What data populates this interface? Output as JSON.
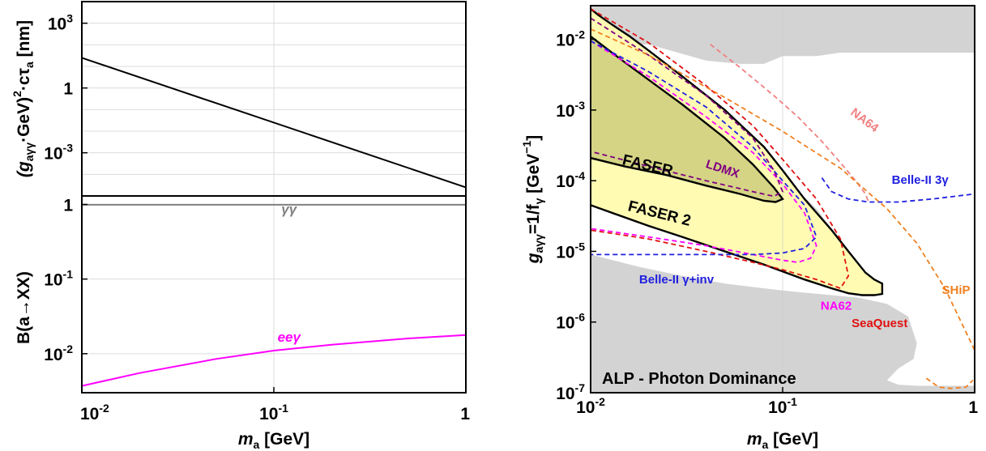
{
  "chart_data": [
    {
      "type": "line",
      "panel": "left-top",
      "ylabel_parts": [
        "(g",
        "aγγ",
        "·GeV)",
        "2",
        "·cτ",
        "a",
        " [nm]"
      ],
      "xscale": "log",
      "yscale": "log",
      "xlim": [
        0.01,
        1
      ],
      "ylim": [
        1e-05,
        10000
      ],
      "yticks": [
        {
          "v": 0.001,
          "b": "10",
          "e": "-3"
        },
        {
          "v": 1,
          "b": "1",
          "e": ""
        },
        {
          "v": 1000,
          "b": "10",
          "e": "3"
        }
      ],
      "series": [
        {
          "name": "",
          "color": "#000000",
          "x": [
            0.01,
            1
          ],
          "y": [
            25,
            2.5e-05
          ]
        }
      ]
    },
    {
      "type": "line",
      "panel": "left-bottom",
      "ylabel": "B(a→XX)",
      "xlabel_parts": [
        "m",
        "a",
        " [GeV]"
      ],
      "xscale": "log",
      "yscale": "log",
      "xlim": [
        0.01,
        1
      ],
      "ylim": [
        0.003,
        1.3
      ],
      "xticks": [
        {
          "v": 0.01,
          "b": "10",
          "e": "-2"
        },
        {
          "v": 0.1,
          "b": "10",
          "e": "-1"
        },
        {
          "v": 1,
          "b": "1",
          "e": ""
        }
      ],
      "yticks": [
        {
          "v": 0.01,
          "b": "10",
          "e": "-2"
        },
        {
          "v": 0.1,
          "b": "10",
          "e": "-1"
        },
        {
          "v": 1,
          "b": "1",
          "e": ""
        }
      ],
      "series": [
        {
          "name": "γγ",
          "color": "#808080",
          "x": [
            0.01,
            1
          ],
          "y": [
            0.99,
            0.99
          ]
        },
        {
          "name": "eeγ",
          "color": "#ff00ff",
          "x": [
            0.01,
            0.02,
            0.05,
            0.1,
            0.2,
            0.5,
            1
          ],
          "y": [
            0.0037,
            0.0055,
            0.0085,
            0.011,
            0.0132,
            0.016,
            0.0178
          ]
        }
      ],
      "labels": [
        {
          "text": "γγ",
          "color": "#808080",
          "x": 0.12,
          "y": 0.75
        },
        {
          "text": "eeγ",
          "color": "#ff00ff",
          "x": 0.12,
          "y": 0.0145
        }
      ]
    },
    {
      "type": "area",
      "panel": "right",
      "xlabel_parts": [
        "m",
        "a",
        " [GeV]"
      ],
      "ylabel_parts": [
        "g",
        "aγγ",
        "=1/f",
        "γ",
        "  [GeV",
        "−1",
        "]"
      ],
      "xscale": "log",
      "yscale": "log",
      "xlim": [
        0.01,
        1
      ],
      "ylim": [
        1e-07,
        0.03
      ],
      "xticks": [
        {
          "v": 0.01,
          "b": "10",
          "e": "-2"
        },
        {
          "v": 0.1,
          "b": "10",
          "e": "-1"
        },
        {
          "v": 1,
          "b": "1",
          "e": ""
        }
      ],
      "yticks": [
        {
          "v": 1e-07,
          "b": "10",
          "e": "-7"
        },
        {
          "v": 1e-06,
          "b": "10",
          "e": "-6"
        },
        {
          "v": 1e-05,
          "b": "10",
          "e": "-5"
        },
        {
          "v": 0.0001,
          "b": "10",
          "e": "-4"
        },
        {
          "v": 0.001,
          "b": "10",
          "e": "-3"
        },
        {
          "v": 0.01,
          "b": "10",
          "e": "-2"
        }
      ],
      "title_box": "ALP - Photon Dominance",
      "regions": [
        {
          "name": "excluded-top",
          "color": "#d3d3d3",
          "x": [
            0.01,
            0.01,
            0.02,
            0.04,
            0.06,
            0.08,
            0.1,
            0.15,
            0.2,
            0.3,
            0.5,
            0.7,
            1.0,
            1.0,
            0.01
          ],
          "y": [
            0.03,
            0.008,
            0.0085,
            0.005,
            0.0045,
            0.0045,
            0.0058,
            0.0058,
            0.0065,
            0.0065,
            0.0065,
            0.0065,
            0.0065,
            0.03,
            0.03
          ]
        },
        {
          "name": "excluded-bottom",
          "color": "#d3d3d3",
          "x": [
            0.01,
            0.01,
            0.018,
            0.03,
            0.05,
            0.08,
            0.1,
            0.13,
            0.18,
            0.25,
            0.35,
            0.45,
            0.5,
            0.48,
            0.4,
            0.35,
            0.4,
            0.5,
            0.7,
            1.0,
            1.0,
            0.01
          ],
          "y": [
            1e-07,
            9e-06,
            6e-06,
            4.5e-06,
            3.5e-06,
            3e-06,
            2.8e-06,
            2.6e-06,
            2.4e-06,
            2.2e-06,
            1.8e-06,
            1.2e-06,
            5e-07,
            3e-07,
            2.2e-07,
            1.5e-07,
            1.3e-07,
            1.25e-07,
            1.25e-07,
            1.25e-07,
            1e-07,
            1e-07
          ]
        },
        {
          "name": "excluded-wedge",
          "color": "#d3d3d3",
          "x": [
            0.019,
            0.035,
            0.06,
            0.1,
            0.15,
            0.21,
            0.2,
            0.13,
            0.08
          ],
          "y": [
            0.0007,
            0.00075,
            0.00035,
            0.00012,
            4e-05,
            1.2e-05,
            5e-06,
            2.5e-05,
            8e-05
          ]
        },
        {
          "name": "FASER 2",
          "color": "#fffbb3",
          "x": [
            0.01,
            0.011,
            0.013,
            0.016,
            0.02,
            0.03,
            0.05,
            0.08,
            0.1,
            0.13,
            0.18,
            0.22,
            0.27,
            0.3,
            0.33,
            0.33,
            0.3,
            0.26,
            0.22,
            0.18,
            0.13,
            0.1,
            0.08,
            0.05,
            0.03,
            0.02,
            0.01
          ],
          "y": [
            0.027,
            0.022,
            0.016,
            0.011,
            0.007,
            0.003,
            0.001,
            0.0003,
            0.00014,
            5.5e-05,
            2e-05,
            1e-05,
            5e-06,
            4e-06,
            3.5e-06,
            2.5e-06,
            2.4e-06,
            2.4e-06,
            2.55e-06,
            3e-06,
            4e-06,
            5.2e-06,
            6.5e-06,
            1e-05,
            1.6e-05,
            2.3e-05,
            4.5e-05
          ]
        },
        {
          "name": "FASER",
          "color": "#cfcf7e",
          "x": [
            0.01,
            0.014,
            0.02,
            0.03,
            0.05,
            0.07,
            0.09,
            0.1,
            0.092,
            0.08,
            0.06,
            0.04,
            0.025,
            0.015,
            0.01
          ],
          "y": [
            0.011,
            0.0055,
            0.0027,
            0.0012,
            0.0004,
            0.00017,
            8e-05,
            5.5e-05,
            5e-05,
            5.2e-05,
            6.5e-05,
            8.5e-05,
            0.00012,
            0.00016,
            0.00021
          ]
        }
      ],
      "series": [
        {
          "name": "FASER",
          "color": "#000000",
          "style": "solid",
          "x": [
            0.01,
            0.014,
            0.02,
            0.03,
            0.05,
            0.07,
            0.09,
            0.1,
            0.092,
            0.08,
            0.06,
            0.04,
            0.025,
            0.015,
            0.01
          ],
          "y": [
            0.011,
            0.0055,
            0.0027,
            0.0012,
            0.0004,
            0.00017,
            8e-05,
            5.5e-05,
            5e-05,
            5.2e-05,
            6.5e-05,
            8.5e-05,
            0.00012,
            0.00016,
            0.00021
          ]
        },
        {
          "name": "FASER 2",
          "color": "#000000",
          "style": "solid",
          "x": [
            0.01,
            0.011,
            0.013,
            0.016,
            0.02,
            0.03,
            0.05,
            0.08,
            0.1,
            0.13,
            0.18,
            0.22,
            0.27,
            0.3,
            0.33,
            0.33,
            0.3,
            0.26,
            0.22,
            0.18,
            0.13,
            0.1,
            0.08,
            0.05,
            0.03,
            0.02,
            0.01
          ],
          "y": [
            0.027,
            0.022,
            0.016,
            0.011,
            0.007,
            0.003,
            0.001,
            0.0003,
            0.00014,
            5.5e-05,
            2e-05,
            1e-05,
            5e-06,
            4e-06,
            3.5e-06,
            2.5e-06,
            2.4e-06,
            2.4e-06,
            2.55e-06,
            3e-06,
            4e-06,
            5.2e-06,
            6.5e-06,
            1e-05,
            1.6e-05,
            2.3e-05,
            4.5e-05
          ]
        },
        {
          "name": "SeaQuest",
          "color": "#e01010",
          "style": "dashed",
          "x": [
            0.01,
            0.02,
            0.04,
            0.07,
            0.1,
            0.15,
            0.2,
            0.22,
            0.2,
            0.15,
            0.1,
            0.07,
            0.04,
            0.02,
            0.01
          ],
          "y": [
            0.027,
            0.009,
            0.0022,
            0.0006,
            0.0002,
            5.5e-05,
            1.5e-05,
            4.5e-06,
            3e-06,
            4e-06,
            5.5e-06,
            7e-06,
            1e-05,
            1.5e-05,
            2e-05
          ]
        },
        {
          "name": "NA62",
          "color": "#ff00ff",
          "style": "dashed",
          "x": [
            0.01,
            0.02,
            0.04,
            0.07,
            0.1,
            0.13,
            0.15,
            0.14,
            0.12,
            0.1,
            0.07,
            0.04,
            0.02,
            0.01
          ],
          "y": [
            0.0095,
            0.003,
            0.0008,
            0.00025,
            9e-05,
            3.5e-05,
            1.2e-05,
            8e-06,
            7e-06,
            7.5e-06,
            9e-06,
            1.2e-05,
            1.6e-05,
            2.1e-05
          ]
        },
        {
          "name": "Belle-II γ+inv",
          "color": "#2020e0",
          "style": "dashed",
          "x": [
            0.01,
            0.02,
            0.04,
            0.07,
            0.1,
            0.13,
            0.15,
            0.13,
            0.1,
            0.07,
            0.04,
            0.02,
            0.01
          ],
          "y": [
            0.0095,
            0.0035,
            0.0011,
            0.0003,
            0.0001,
            4.5e-05,
            1.6e-05,
            1.1e-05,
            9.5e-06,
            9e-06,
            9e-06,
            9e-06,
            9e-06
          ]
        },
        {
          "name": "Belle-II 3γ",
          "color": "#2020e0",
          "style": "dashed",
          "x": [
            0.16,
            0.18,
            0.22,
            0.28,
            0.4,
            0.6,
            1.0
          ],
          "y": [
            0.00011,
            7e-05,
            5.5e-05,
            5e-05,
            5e-05,
            5.5e-05,
            6.5e-05
          ]
        },
        {
          "name": "NA64",
          "color": "#f08080",
          "style": "dashed",
          "x": [
            0.042,
            0.06,
            0.09,
            0.12,
            0.16,
            0.2,
            0.24,
            0.27,
            0.28
          ],
          "y": [
            0.0085,
            0.004,
            0.0016,
            0.0008,
            0.00036,
            0.00018,
            0.0001,
            6.5e-05,
            5e-05
          ]
        },
        {
          "name": "LDMX",
          "color": "#800080",
          "style": "dashed",
          "x": [
            0.01,
            0.02,
            0.04,
            0.07,
            0.09,
            0.1,
            0.09,
            0.07,
            0.04,
            0.02,
            0.01
          ],
          "y": [
            0.02,
            0.006,
            0.0016,
            0.0004,
            0.00014,
            7e-05,
            6e-05,
            7e-05,
            0.0001,
            0.00016,
            0.00026
          ]
        },
        {
          "name": "SHiP",
          "color": "#f08020",
          "style": "dashed",
          "x": [
            0.01,
            0.02,
            0.05,
            0.1,
            0.2,
            0.35,
            0.5,
            0.7,
            1.0
          ],
          "y": [
            0.014,
            0.006,
            0.0015,
            0.0005,
            0.00015,
            4e-05,
            1.3e-05,
            3e-06,
            4e-07
          ]
        },
        {
          "name": "SHiP-low",
          "color": "#f08020",
          "style": "dashed",
          "x": [
            0.56,
            0.65,
            0.75,
            0.9,
            0.98
          ],
          "y": [
            1.6e-07,
            1.2e-07,
            1.15e-07,
            1.2e-07,
            1.5e-07
          ]
        }
      ],
      "labels": [
        {
          "text": "NA64",
          "color": "#f08080",
          "x": 0.26,
          "y": 0.00065,
          "rot": 37
        },
        {
          "text": "Belle-II 3γ",
          "color": "#2020e0",
          "x": 0.52,
          "y": 9e-05,
          "rot": 0
        },
        {
          "text": "LDMX",
          "color": "#800080",
          "x": 0.048,
          "y": 0.00013,
          "rot": 18
        },
        {
          "text": "Belle-II γ+inv",
          "color": "#2020e0",
          "x": 0.028,
          "y": 3.5e-06,
          "rot": 0
        },
        {
          "text": "NA62",
          "color": "#ff00ff",
          "x": 0.19,
          "y": 1.5e-06,
          "rot": 0
        },
        {
          "text": "SeaQuest",
          "color": "#e01010",
          "x": 0.32,
          "y": 8.5e-07,
          "rot": 0
        },
        {
          "text": "SHiP",
          "color": "#f08020",
          "x": 0.8,
          "y": 2.5e-06,
          "rot": 0
        }
      ],
      "big_labels": [
        {
          "text": "FASER",
          "color": "#000000",
          "x": 0.0145,
          "y": 0.00017,
          "rot": 13
        },
        {
          "text": "FASER 2",
          "color": "#000000",
          "x": 0.0155,
          "y": 3.8e-05,
          "rot": 14
        }
      ]
    }
  ]
}
